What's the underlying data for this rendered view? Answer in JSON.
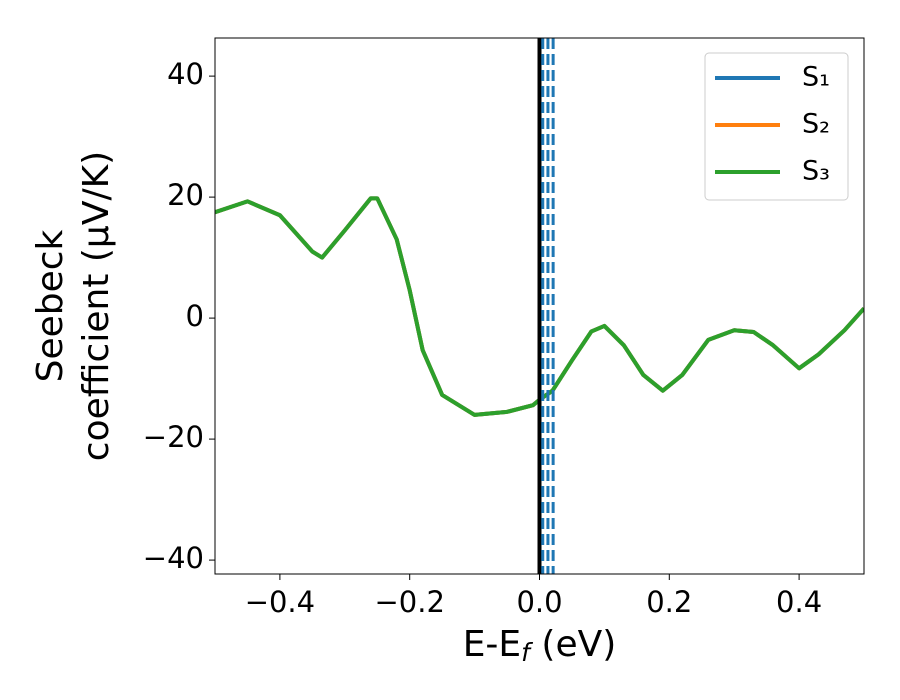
{
  "chart_data": {
    "type": "line",
    "xlabel": {
      "main": "E-E",
      "sub": "f",
      "rest": " (eV)"
    },
    "ylabel": [
      "Seebeck",
      "coefficient  (μV/K)"
    ],
    "xlim": [
      -0.5,
      0.5
    ],
    "ylim": [
      -42.3,
      46.3
    ],
    "xticks": [
      {
        "value": -0.4,
        "label": "−0.4"
      },
      {
        "value": -0.2,
        "label": "−0.2"
      },
      {
        "value": 0,
        "label": "0.0"
      },
      {
        "value": 0.2,
        "label": "0.2"
      },
      {
        "value": 0.4,
        "label": "0.4"
      }
    ],
    "yticks": [
      {
        "value": -40,
        "label": "−40"
      },
      {
        "value": -20,
        "label": "−20"
      },
      0,
      20,
      40
    ],
    "x": [
      -0.5,
      -0.45,
      -0.4,
      -0.35,
      -0.335,
      -0.3,
      -0.26,
      -0.25,
      -0.22,
      -0.2,
      -0.18,
      -0.15,
      -0.1,
      -0.05,
      -0.01,
      0,
      0.02,
      0.05,
      0.08,
      0.1,
      0.13,
      0.16,
      0.19,
      0.22,
      0.26,
      0.3,
      0.33,
      0.36,
      0.4,
      0.43,
      0.47,
      0.5
    ],
    "series": [
      {
        "name": "S₁",
        "color": "#1f77b4",
        "values": [
          17.5,
          19.3,
          17,
          11,
          10,
          14.5,
          19.8,
          19.8,
          13,
          4.6,
          -5.3,
          -12.7,
          -16,
          -15.5,
          -14.4,
          -13.5,
          -12,
          -7,
          -2.2,
          -1.3,
          -4.5,
          -9.4,
          -12,
          -9.4,
          -3.6,
          -2,
          -2.3,
          -4.5,
          -8.3,
          -6,
          -2,
          1.6
        ]
      },
      {
        "name": "S₂",
        "color": "#ff7f0e",
        "values": [
          17.5,
          19.3,
          17,
          11,
          10,
          14.5,
          19.8,
          19.8,
          13,
          4.6,
          -5.3,
          -12.7,
          -16,
          -15.5,
          -14.4,
          -13.5,
          -12,
          -7,
          -2.2,
          -1.3,
          -4.5,
          -9.4,
          -12,
          -9.4,
          -3.6,
          -2,
          -2.3,
          -4.5,
          -8.3,
          -6,
          -2,
          1.6
        ]
      },
      {
        "name": "S₃",
        "color": "#2ca02c",
        "values": [
          17.5,
          19.3,
          17,
          11,
          10,
          14.5,
          19.8,
          19.8,
          13,
          4.6,
          -5.3,
          -12.7,
          -16,
          -15.5,
          -14.4,
          -13.5,
          -12,
          -7,
          -2.2,
          -1.3,
          -4.5,
          -9.4,
          -12,
          -9.4,
          -3.6,
          -2,
          -2.3,
          -4.5,
          -8.3,
          -6,
          -2,
          1.6
        ]
      }
    ],
    "vlines": [
      {
        "x": 0,
        "color": "#000000",
        "dashed": false
      },
      {
        "x": 0.005,
        "color": "#1f77b4",
        "dashed": true
      },
      {
        "x": 0.013,
        "color": "#1f77b4",
        "dashed": true
      },
      {
        "x": 0.021,
        "color": "#1f77b4",
        "dashed": true
      }
    ],
    "legend": "upper right"
  }
}
